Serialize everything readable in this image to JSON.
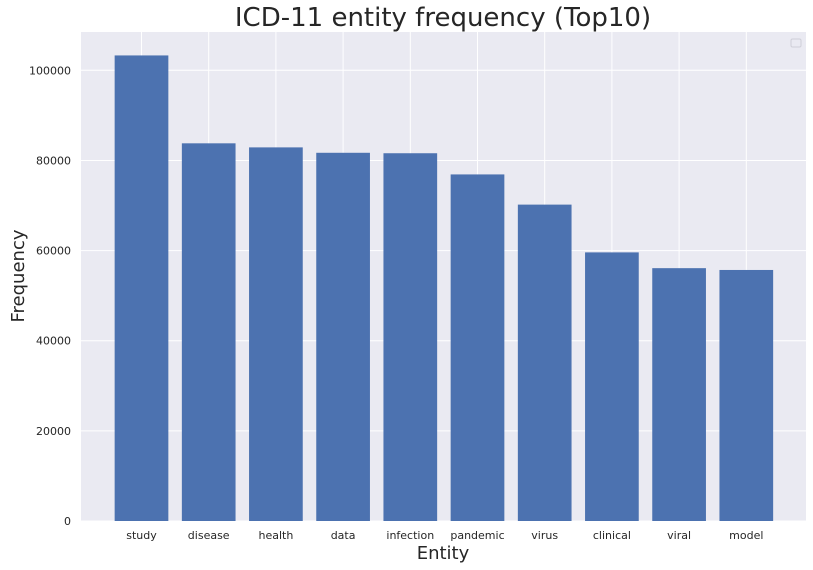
{
  "chart_data": {
    "type": "bar",
    "title": "ICD-11 entity frequency (Top10)",
    "xlabel": "Entity",
    "ylabel": "Frequency",
    "categories": [
      "study",
      "disease",
      "health",
      "data",
      "infection",
      "pandemic",
      "virus",
      "clinical",
      "viral",
      "model"
    ],
    "values": [
      103300,
      83800,
      82900,
      81700,
      81600,
      76900,
      70200,
      59600,
      56100,
      55700
    ],
    "ylim": [
      0,
      108500
    ],
    "yticks": [
      0,
      20000,
      40000,
      60000,
      80000,
      100000
    ],
    "grid": true,
    "legend": "top-right",
    "colors": {
      "bar": "#4c72b0",
      "plot_background": "#eaeaf2",
      "grid": "#ffffff",
      "text": "#262626"
    }
  }
}
